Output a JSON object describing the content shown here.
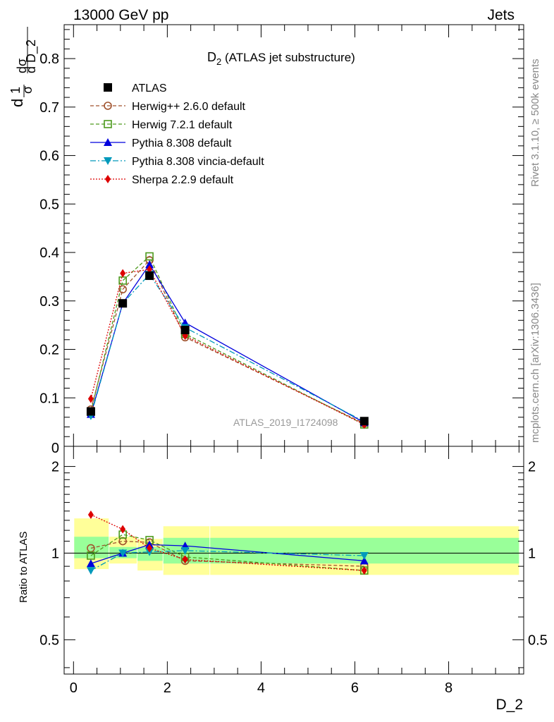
{
  "header": {
    "left": "13000 GeV pp",
    "right": "Jets"
  },
  "side_text": {
    "rivet": "Rivet 3.1.10, ≥ 500k events",
    "mcplots": "mcplots.cern.ch [arXiv:1306.3436]"
  },
  "chart_data": {
    "type": "line",
    "title": "D₂ (ATLAS jet substructure)",
    "title_main": "D",
    "title_sub": "2",
    "title_rest": " (ATLAS jet substructure)",
    "ylabel_parts": {
      "one": "1",
      "sigma": "σ",
      "dsigma": "dσ",
      "dD2": "d D_2",
      "d": "d"
    },
    "xlabel": "D_2",
    "watermark": "ATLAS_2019_I1724098",
    "main_ylim": [
      0,
      0.87
    ],
    "main_yticks": [
      0.1,
      0.2,
      0.3,
      0.4,
      0.5,
      0.6,
      0.7,
      0.8
    ],
    "main_ytick_labels": [
      "0.1",
      "0.2",
      "0.3",
      "0.4",
      "0.5",
      "0.6",
      "0.7",
      "0.8"
    ],
    "main_zero_label": "0",
    "xlim": [
      -0.2,
      9.6
    ],
    "xticks": [
      0,
      2,
      4,
      6,
      8
    ],
    "xtick_labels": [
      "0",
      "2",
      "4",
      "6",
      "8"
    ],
    "x": [
      0.37,
      1.05,
      1.62,
      2.38,
      6.2
    ],
    "series": [
      {
        "name": "ATLAS",
        "values": [
          0.072,
          0.295,
          0.352,
          0.24,
          0.052
        ],
        "color": "#000000",
        "marker": "square-filled",
        "dash": "",
        "legend": true
      },
      {
        "name": "Herwig++ 2.6.0 default",
        "values": [
          0.076,
          0.324,
          0.384,
          0.225,
          0.047
        ],
        "color": "#a0522d",
        "marker": "circle-open",
        "dash": "5,3",
        "legend": true
      },
      {
        "name": "Herwig 7.2.1 default",
        "values": [
          0.071,
          0.342,
          0.392,
          0.232,
          0.045
        ],
        "color": "#4d9a1d",
        "marker": "square-open",
        "dash": "5,3",
        "legend": true
      },
      {
        "name": "Pythia 8.308 default",
        "values": [
          0.066,
          0.295,
          0.375,
          0.255,
          0.049
        ],
        "color": "#0000dd",
        "marker": "triangle-up",
        "dash": "",
        "legend": true
      },
      {
        "name": "Pythia 8.308 vincia-default",
        "values": [
          0.063,
          0.295,
          0.355,
          0.245,
          0.051
        ],
        "color": "#0099bb",
        "marker": "triangle-down",
        "dash": "8,3,2,3",
        "legend": true
      },
      {
        "name": "Sherpa 2.2.9 default",
        "values": [
          0.098,
          0.357,
          0.365,
          0.228,
          0.045
        ],
        "color": "#dd0000",
        "marker": "diamond",
        "dash": "2,2",
        "legend": true
      }
    ],
    "ratio": {
      "ylabel": "Ratio to ATLAS",
      "yticks": [
        0.5,
        1,
        2
      ],
      "ytick_labels": [
        "0.5",
        "1",
        "2"
      ],
      "ylim_log": [
        0.38,
        2.35
      ],
      "values": [
        [
          1.0,
          1.0,
          1.0,
          1.0,
          1.0
        ],
        [
          1.04,
          1.1,
          1.09,
          0.94,
          0.9
        ],
        [
          0.98,
          1.16,
          1.11,
          0.97,
          0.87
        ],
        [
          0.92,
          1.0,
          1.07,
          1.06,
          0.94
        ],
        [
          0.87,
          1.0,
          1.01,
          1.02,
          0.98
        ],
        [
          1.36,
          1.21,
          1.04,
          0.95,
          0.87
        ]
      ],
      "bands": [
        {
          "x": [
            0.0,
            0.75
          ],
          "green": [
            0.96,
            1.14
          ],
          "yellow": [
            0.88,
            1.32
          ]
        },
        {
          "x": [
            0.75,
            1.35
          ],
          "green": [
            0.96,
            1.05
          ],
          "yellow": [
            0.92,
            1.14
          ]
        },
        {
          "x": [
            1.35,
            1.9
          ],
          "green": [
            0.94,
            1.05
          ],
          "yellow": [
            0.87,
            1.12
          ]
        },
        {
          "x": [
            1.9,
            2.9
          ],
          "green": [
            0.92,
            1.13
          ],
          "yellow": [
            0.84,
            1.24
          ]
        },
        {
          "x": [
            2.9,
            9.5
          ],
          "green": [
            0.92,
            1.13
          ],
          "yellow": [
            0.84,
            1.24
          ]
        }
      ],
      "band_colors": {
        "green": "#99ff99",
        "yellow": "#ffff99"
      }
    }
  }
}
